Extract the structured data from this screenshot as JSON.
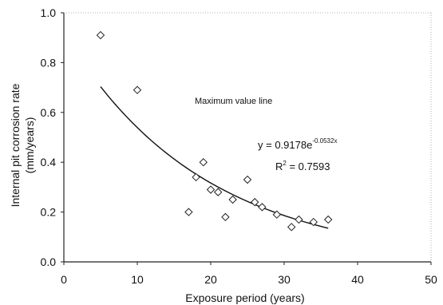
{
  "chart_data": {
    "type": "scatter",
    "xlabel": "Exposure period (years)",
    "ylabel": "Internal pit corrosion rate\n(mm/years)",
    "xlim": [
      0,
      50
    ],
    "ylim": [
      0.0,
      1.0
    ],
    "x_ticks": [
      0,
      10,
      20,
      30,
      40,
      50
    ],
    "y_ticks": [
      0.0,
      0.2,
      0.4,
      0.6,
      0.8,
      1.0
    ],
    "y_tick_labels": [
      "0.0",
      "0.2",
      "0.4",
      "0.6",
      "0.8",
      "1.0"
    ],
    "x_tick_labels": [
      "0",
      "10",
      "20",
      "30",
      "40",
      "50"
    ],
    "grid": false,
    "points": [
      {
        "x": 5,
        "y": 0.91
      },
      {
        "x": 10,
        "y": 0.69
      },
      {
        "x": 17,
        "y": 0.2
      },
      {
        "x": 18,
        "y": 0.34
      },
      {
        "x": 19,
        "y": 0.4
      },
      {
        "x": 20,
        "y": 0.29
      },
      {
        "x": 21,
        "y": 0.28
      },
      {
        "x": 22,
        "y": 0.18
      },
      {
        "x": 23,
        "y": 0.25
      },
      {
        "x": 25,
        "y": 0.33
      },
      {
        "x": 26,
        "y": 0.24
      },
      {
        "x": 27,
        "y": 0.22
      },
      {
        "x": 29,
        "y": 0.19
      },
      {
        "x": 31,
        "y": 0.14
      },
      {
        "x": 32,
        "y": 0.17
      },
      {
        "x": 34,
        "y": 0.16
      },
      {
        "x": 36,
        "y": 0.17
      }
    ],
    "fit": {
      "a": 0.9178,
      "b": -0.0532,
      "x_range": [
        5,
        36
      ]
    },
    "annotation": "Maximum value line",
    "equation": {
      "prefix": "y = 0.9178e",
      "exponent": "-0.0532x",
      "r2_prefix": "R",
      "r2_sup": "2",
      "r2_suffix": " = 0.7593"
    }
  }
}
